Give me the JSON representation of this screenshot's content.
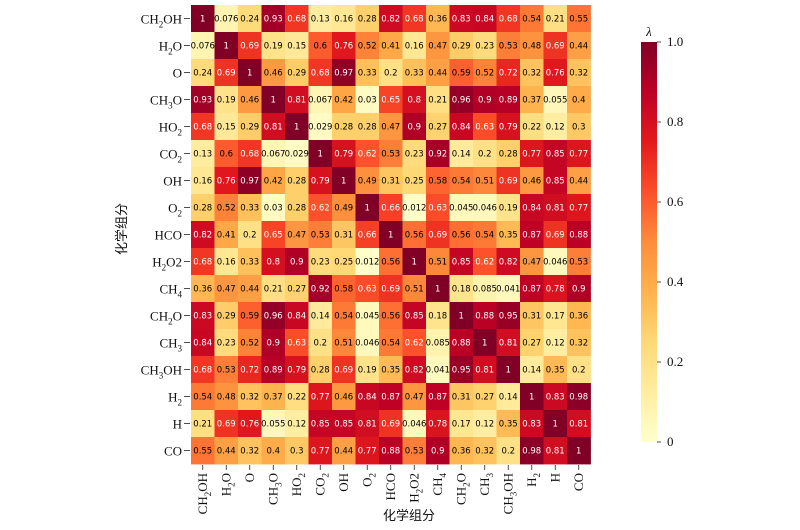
{
  "chart_data": {
    "type": "heatmap",
    "title": "",
    "xlabel": "化学组分",
    "ylabel": "化学组分",
    "labels": [
      "CH2OH",
      "H2O",
      "O",
      "CH3O",
      "HO2",
      "CO2",
      "OH",
      "O2",
      "HCO",
      "H2O2",
      "CH4",
      "CH2O",
      "CH3",
      "CH3OH",
      "H2",
      "H",
      "CO"
    ],
    "label_display": [
      {
        "base": "CH",
        "sub": "2",
        "rest": "OH"
      },
      {
        "base": "H",
        "sub": "2",
        "rest": "O"
      },
      {
        "base": "O",
        "sub": "",
        "rest": ""
      },
      {
        "base": "CH",
        "sub": "3",
        "rest": "O"
      },
      {
        "base": "HO",
        "sub": "2",
        "rest": ""
      },
      {
        "base": "CO",
        "sub": "2",
        "rest": ""
      },
      {
        "base": "OH",
        "sub": "",
        "rest": ""
      },
      {
        "base": "O",
        "sub": "2",
        "rest": ""
      },
      {
        "base": "HCO",
        "sub": "",
        "rest": ""
      },
      {
        "base": "H",
        "sub": "2",
        "rest": "O2"
      },
      {
        "base": "CH",
        "sub": "4",
        "rest": ""
      },
      {
        "base": "CH",
        "sub": "2",
        "rest": "O"
      },
      {
        "base": "CH",
        "sub": "3",
        "rest": ""
      },
      {
        "base": "CH",
        "sub": "3",
        "rest": "OH"
      },
      {
        "base": "H",
        "sub": "2",
        "rest": ""
      },
      {
        "base": "H",
        "sub": "",
        "rest": ""
      },
      {
        "base": "CO",
        "sub": "",
        "rest": ""
      }
    ],
    "matrix": [
      [
        1,
        0.076,
        0.24,
        0.93,
        0.68,
        0.13,
        0.16,
        0.28,
        0.82,
        0.68,
        0.36,
        0.83,
        0.84,
        0.68,
        0.54,
        0.21,
        0.55
      ],
      [
        0.076,
        1,
        0.69,
        0.19,
        0.15,
        0.6,
        0.76,
        0.52,
        0.41,
        0.16,
        0.47,
        0.29,
        0.23,
        0.53,
        0.48,
        0.69,
        0.44
      ],
      [
        0.24,
        0.69,
        1,
        0.46,
        0.29,
        0.68,
        0.97,
        0.33,
        0.2,
        0.33,
        0.44,
        0.59,
        0.52,
        0.72,
        0.32,
        0.76,
        0.32
      ],
      [
        0.93,
        0.19,
        0.46,
        1,
        0.81,
        0.067,
        0.42,
        0.03,
        0.65,
        0.8,
        0.21,
        0.96,
        0.9,
        0.89,
        0.37,
        0.055,
        0.4
      ],
      [
        0.68,
        0.15,
        0.29,
        0.81,
        1,
        0.029,
        0.28,
        0.28,
        0.47,
        0.9,
        0.27,
        0.84,
        0.63,
        0.79,
        0.22,
        0.12,
        0.3
      ],
      [
        0.13,
        0.6,
        0.68,
        0.067,
        0.029,
        1,
        0.79,
        0.62,
        0.53,
        0.23,
        0.92,
        0.14,
        0.2,
        0.28,
        0.77,
        0.85,
        0.77
      ],
      [
        0.16,
        0.76,
        0.97,
        0.42,
        0.28,
        0.79,
        1,
        0.49,
        0.31,
        0.25,
        0.58,
        0.54,
        0.51,
        0.69,
        0.46,
        0.85,
        0.44
      ],
      [
        0.28,
        0.52,
        0.33,
        0.03,
        0.28,
        0.62,
        0.49,
        1,
        0.66,
        0.012,
        0.63,
        0.045,
        0.046,
        0.19,
        0.84,
        0.81,
        0.77
      ],
      [
        0.82,
        0.41,
        0.2,
        0.65,
        0.47,
        0.53,
        0.31,
        0.66,
        1,
        0.56,
        0.69,
        0.56,
        0.54,
        0.35,
        0.87,
        0.69,
        0.88
      ],
      [
        0.68,
        0.16,
        0.33,
        0.8,
        0.9,
        0.23,
        0.25,
        0.012,
        0.56,
        1,
        0.51,
        0.85,
        0.62,
        0.82,
        0.47,
        0.046,
        0.53
      ],
      [
        0.36,
        0.47,
        0.44,
        0.21,
        0.27,
        0.92,
        0.58,
        0.63,
        0.69,
        0.51,
        1,
        0.18,
        0.085,
        0.041,
        0.87,
        0.78,
        0.9
      ],
      [
        0.83,
        0.29,
        0.59,
        0.96,
        0.84,
        0.14,
        0.54,
        0.045,
        0.56,
        0.85,
        0.18,
        1,
        0.88,
        0.95,
        0.31,
        0.17,
        0.36
      ],
      [
        0.84,
        0.23,
        0.52,
        0.9,
        0.63,
        0.2,
        0.51,
        0.046,
        0.54,
        0.62,
        0.085,
        0.88,
        1,
        0.81,
        0.27,
        0.12,
        0.32
      ],
      [
        0.68,
        0.53,
        0.72,
        0.89,
        0.79,
        0.28,
        0.69,
        0.19,
        0.35,
        0.82,
        0.041,
        0.95,
        0.81,
        1,
        0.14,
        0.35,
        0.2
      ],
      [
        0.54,
        0.48,
        0.32,
        0.37,
        0.22,
        0.77,
        0.46,
        0.84,
        0.87,
        0.47,
        0.87,
        0.31,
        0.27,
        0.14,
        1,
        0.83,
        0.98
      ],
      [
        0.21,
        0.69,
        0.76,
        0.055,
        0.12,
        0.85,
        0.85,
        0.81,
        0.69,
        0.046,
        0.78,
        0.17,
        0.12,
        0.35,
        0.83,
        1,
        0.81
      ],
      [
        0.55,
        0.44,
        0.32,
        0.4,
        0.3,
        0.77,
        0.44,
        0.77,
        0.88,
        0.53,
        0.9,
        0.36,
        0.32,
        0.2,
        0.98,
        0.81,
        1
      ]
    ],
    "colorbar": {
      "title": "λ",
      "range": [
        0,
        1.0
      ],
      "ticks": [
        "0",
        "0.2",
        "0.4",
        "0.6",
        "0.8",
        "1.0"
      ],
      "colormap": "YlOrRd"
    }
  }
}
